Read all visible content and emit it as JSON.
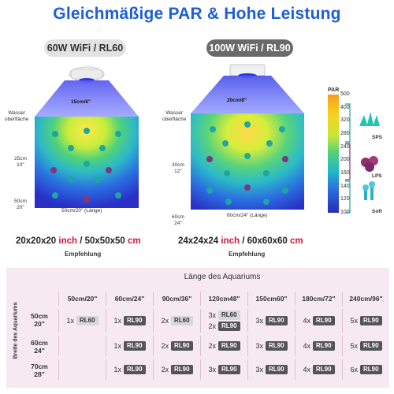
{
  "headline": "Gleichmäßige PAR & Hohe Leistung",
  "left_tank": {
    "model": "60W WiFi / RL60",
    "light_label": "15cm/6\"",
    "surface_label": "Wasser\noberfläche",
    "depth_25": "25cm\n10\"",
    "depth_50": "50cm\n20\"",
    "bottom_label": "50cm/20\" (Länge)",
    "size_inch": "20x20x20",
    "size_inch_unit": "inch",
    "size_cm": "50x50x50",
    "size_cm_unit": "cm",
    "recommend": "Empfehlung"
  },
  "right_tank": {
    "model": "100W WiFi / RL90",
    "light_label": "20cm/8\"",
    "surface_label": "Wasser\noberfläche",
    "depth_30": "30cm\n12\"",
    "depth_60": "60cm\n24\"",
    "bottom_label": "60cm/24\" (Länge)",
    "size_inch": "24x24x24",
    "size_inch_unit": "inch",
    "size_cm": "60x60x60",
    "size_cm_unit": "cm",
    "recommend": "Empfehlung"
  },
  "legend": {
    "title": "PAR",
    "ticks": [
      "500",
      "400",
      "320",
      "280",
      "240",
      "200",
      "160",
      "140",
      "120",
      "100"
    ],
    "corals": [
      "SPS",
      "LPS",
      "Soft"
    ]
  },
  "table": {
    "title": "Länge des Aquariums",
    "side_label": "Breite des Aquariums",
    "columns": [
      "50cm/20\"",
      "60cm/24\"",
      "90cm/36\"",
      "120cm48\"",
      "150cm60\"",
      "180cm/72\"",
      "240cm/96\""
    ],
    "rows": [
      {
        "head": "50cm\n20\"",
        "cells": [
          [
            {
              "n": "1x",
              "m": "RL60"
            }
          ],
          [
            {
              "n": "1x",
              "m": "RL90"
            }
          ],
          [
            {
              "n": "2x",
              "m": "RL60"
            }
          ],
          [
            {
              "n": "3x",
              "m": "RL60"
            },
            {
              "n": "2x",
              "m": "RL90"
            }
          ],
          [
            {
              "n": "3x",
              "m": "RL90"
            }
          ],
          [
            {
              "n": "4x",
              "m": "RL90"
            }
          ],
          [
            {
              "n": "5x",
              "m": "RL90"
            }
          ]
        ]
      },
      {
        "head": "60cm\n24\"",
        "cells": [
          [],
          [
            {
              "n": "1x",
              "m": "RL90"
            }
          ],
          [
            {
              "n": "2x",
              "m": "RL90"
            }
          ],
          [
            {
              "n": "2x",
              "m": "RL90"
            }
          ],
          [
            {
              "n": "3x",
              "m": "RL90"
            }
          ],
          [
            {
              "n": "4x",
              "m": "RL90"
            }
          ],
          [
            {
              "n": "5x",
              "m": "RL90"
            }
          ]
        ]
      },
      {
        "head": "70cm\n28\"",
        "cells": [
          [],
          [
            {
              "n": "1x",
              "m": "RL90"
            }
          ],
          [
            {
              "n": "2x",
              "m": "RL90"
            }
          ],
          [
            {
              "n": "3x",
              "m": "RL90"
            }
          ],
          [
            {
              "n": "3x",
              "m": "RL90"
            }
          ],
          [
            {
              "n": "4x",
              "m": "RL90"
            }
          ],
          [
            {
              "n": "6x",
              "m": "RL90"
            }
          ]
        ]
      }
    ]
  },
  "colors": {
    "headline": "#1f5fd6",
    "unit_red": "#d2163a",
    "table_bg": "#f6e9ef"
  }
}
